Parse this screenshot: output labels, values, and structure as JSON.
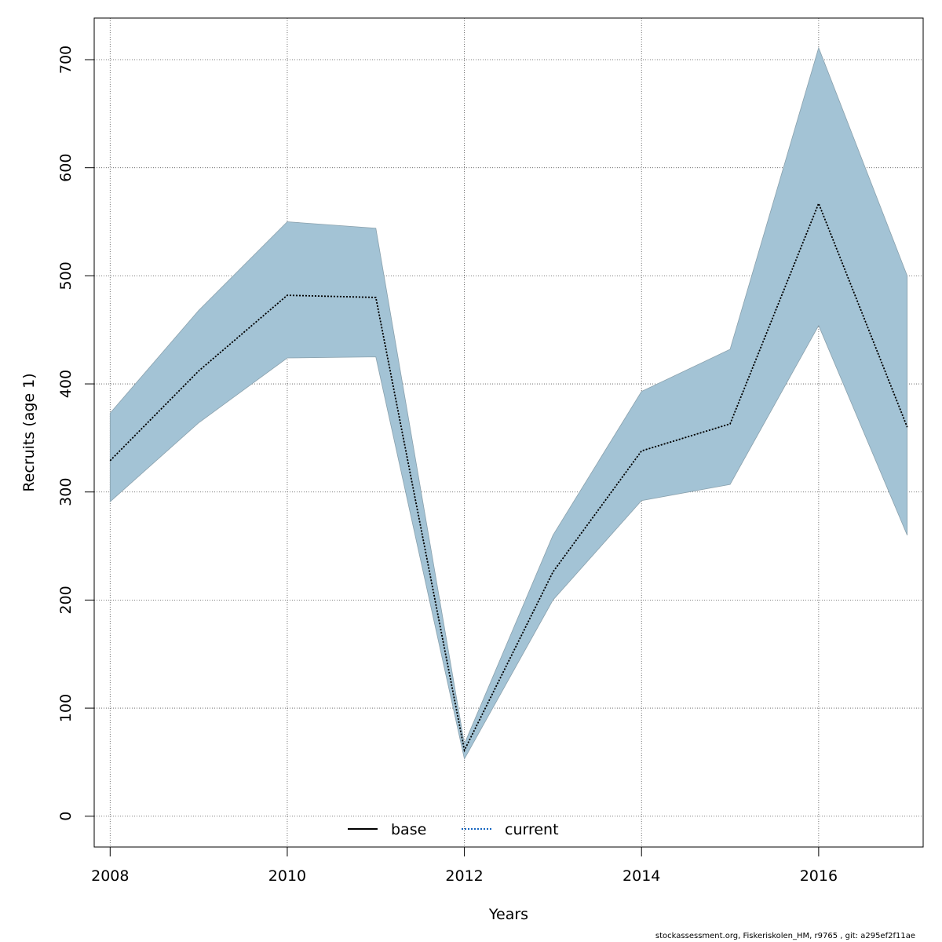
{
  "chart_data": {
    "type": "line",
    "xlabel": "Years",
    "ylabel": "Recruits (age 1)",
    "xlim": [
      2007.82,
      2017.18
    ],
    "ylim": [
      -28.5,
      738.5
    ],
    "x_ticks": [
      2008,
      2010,
      2012,
      2014,
      2016
    ],
    "y_ticks": [
      0,
      100,
      200,
      300,
      400,
      500,
      600,
      700
    ],
    "grid": true,
    "legend_position": "bottom",
    "x": [
      2008,
      2009,
      2010,
      2011,
      2012,
      2013,
      2014,
      2015,
      2016,
      2017
    ],
    "series": [
      {
        "name": "base",
        "values": [
          329,
          412,
          482,
          480,
          61,
          226,
          338,
          363,
          567,
          360
        ]
      },
      {
        "name": "current",
        "values": [
          329,
          412,
          482,
          480,
          61,
          226,
          338,
          363,
          567,
          360
        ]
      }
    ],
    "confidence_band": {
      "lower": [
        291,
        364,
        424,
        425,
        53,
        200,
        292,
        307,
        454,
        260
      ],
      "upper": [
        373,
        468,
        550,
        544,
        67,
        260,
        393,
        432,
        711,
        500
      ]
    },
    "colors": {
      "band_fill": "#a3c3d5",
      "band_edge": "#8aa1ad",
      "base_line": "#000000",
      "current_line": "#000000",
      "current_legend_line": "#1565c0",
      "grid": "#555555"
    }
  },
  "footer": "stockassessment.org, Fiskeriskolen_HM, r9765 , git: a295ef2f11ae"
}
